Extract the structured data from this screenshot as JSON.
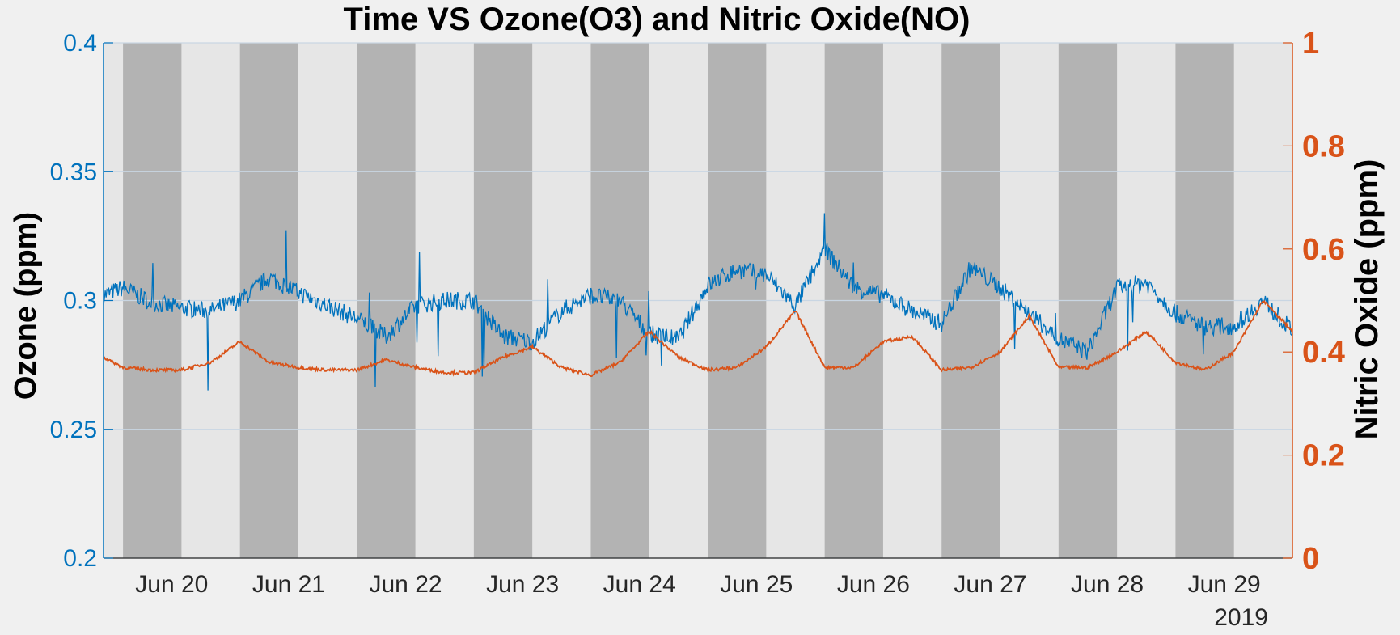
{
  "chart_data": {
    "type": "line",
    "title": "Time VS Ozone(O3) and Nitric Oxide(NO)",
    "year_label": "2019",
    "x_tick_labels": [
      "Jun 20",
      "Jun 21",
      "Jun 22",
      "Jun 23",
      "Jun 24",
      "Jun 25",
      "Jun 26",
      "Jun 27",
      "Jun 28",
      "Jun 29"
    ],
    "xlim": [
      "2019-06-19 10:00",
      "2019-06-29 14:00"
    ],
    "shaded_bands": {
      "description": "alternating dark-gray (night) and light-gray (day) background bands",
      "dark_color": "#b3b3b3",
      "light_color": "#e6e6e6",
      "dark_intervals": [
        [
          "2019-06-19 14:00",
          "2019-06-20 02:00"
        ],
        [
          "2019-06-20 14:00",
          "2019-06-21 02:00"
        ],
        [
          "2019-06-21 14:00",
          "2019-06-22 02:00"
        ],
        [
          "2019-06-22 14:00",
          "2019-06-23 02:00"
        ],
        [
          "2019-06-23 14:00",
          "2019-06-24 02:00"
        ],
        [
          "2019-06-24 14:00",
          "2019-06-25 02:00"
        ],
        [
          "2019-06-25 14:00",
          "2019-06-26 02:00"
        ],
        [
          "2019-06-26 14:00",
          "2019-06-27 02:00"
        ],
        [
          "2019-06-27 14:00",
          "2019-06-28 02:00"
        ],
        [
          "2019-06-28 14:00",
          "2019-06-29 02:00"
        ]
      ]
    },
    "left_axis": {
      "label": "Ozone (ppm)",
      "color": "#0072BD",
      "ylim": [
        0.2,
        0.4
      ],
      "ticks": [
        "0.2",
        "0.25",
        "0.3",
        "0.35",
        "0.4"
      ],
      "grid": true
    },
    "right_axis": {
      "label": "Nitric Oxide (ppm)",
      "color": "#D95319",
      "ylim": [
        0,
        1
      ],
      "ticks": [
        "0",
        "0.2",
        "0.4",
        "0.6",
        "0.8",
        "1"
      ]
    },
    "series": [
      {
        "name": "Ozone",
        "axis": "left",
        "color": "#0072BD",
        "x": [
          "2019-06-19 10:00",
          "2019-06-19 14:00",
          "2019-06-19 20:00",
          "2019-06-20 02:00",
          "2019-06-20 08:00",
          "2019-06-20 14:00",
          "2019-06-20 20:00",
          "2019-06-21 02:00",
          "2019-06-21 08:00",
          "2019-06-21 14:00",
          "2019-06-21 20:00",
          "2019-06-22 02:00",
          "2019-06-22 08:00",
          "2019-06-22 14:00",
          "2019-06-22 20:00",
          "2019-06-23 02:00",
          "2019-06-23 08:00",
          "2019-06-23 14:00",
          "2019-06-23 20:00",
          "2019-06-24 02:00",
          "2019-06-24 08:00",
          "2019-06-24 14:00",
          "2019-06-24 20:00",
          "2019-06-25 02:00",
          "2019-06-25 08:00",
          "2019-06-25 14:00",
          "2019-06-25 20:00",
          "2019-06-26 02:00",
          "2019-06-26 08:00",
          "2019-06-26 14:00",
          "2019-06-26 20:00",
          "2019-06-27 02:00",
          "2019-06-27 08:00",
          "2019-06-27 14:00",
          "2019-06-27 20:00",
          "2019-06-28 02:00",
          "2019-06-28 08:00",
          "2019-06-28 14:00",
          "2019-06-28 20:00",
          "2019-06-29 02:00",
          "2019-06-29 08:00",
          "2019-06-29 14:00"
        ],
        "y": [
          0.302,
          0.305,
          0.299,
          0.297,
          0.296,
          0.3,
          0.309,
          0.303,
          0.298,
          0.293,
          0.286,
          0.298,
          0.3,
          0.3,
          0.286,
          0.284,
          0.296,
          0.302,
          0.3,
          0.287,
          0.285,
          0.306,
          0.312,
          0.31,
          0.298,
          0.32,
          0.305,
          0.302,
          0.296,
          0.291,
          0.313,
          0.305,
          0.295,
          0.285,
          0.28,
          0.305,
          0.307,
          0.295,
          0.29,
          0.29,
          0.3,
          0.288
        ]
      },
      {
        "name": "Nitric Oxide",
        "axis": "right",
        "color": "#D95319",
        "x": [
          "2019-06-19 10:00",
          "2019-06-19 14:00",
          "2019-06-19 20:00",
          "2019-06-20 02:00",
          "2019-06-20 08:00",
          "2019-06-20 14:00",
          "2019-06-20 20:00",
          "2019-06-21 02:00",
          "2019-06-21 08:00",
          "2019-06-21 14:00",
          "2019-06-21 20:00",
          "2019-06-22 02:00",
          "2019-06-22 08:00",
          "2019-06-22 14:00",
          "2019-06-22 20:00",
          "2019-06-23 02:00",
          "2019-06-23 08:00",
          "2019-06-23 14:00",
          "2019-06-23 20:00",
          "2019-06-24 02:00",
          "2019-06-24 08:00",
          "2019-06-24 14:00",
          "2019-06-24 20:00",
          "2019-06-25 02:00",
          "2019-06-25 08:00",
          "2019-06-25 14:00",
          "2019-06-25 20:00",
          "2019-06-26 02:00",
          "2019-06-26 08:00",
          "2019-06-26 14:00",
          "2019-06-26 20:00",
          "2019-06-27 02:00",
          "2019-06-27 08:00",
          "2019-06-27 14:00",
          "2019-06-27 20:00",
          "2019-06-28 02:00",
          "2019-06-28 08:00",
          "2019-06-28 14:00",
          "2019-06-28 20:00",
          "2019-06-29 02:00",
          "2019-06-29 08:00",
          "2019-06-29 14:00"
        ],
        "y": [
          0.39,
          0.37,
          0.365,
          0.365,
          0.38,
          0.42,
          0.38,
          0.37,
          0.365,
          0.365,
          0.385,
          0.37,
          0.36,
          0.36,
          0.39,
          0.41,
          0.37,
          0.355,
          0.38,
          0.44,
          0.39,
          0.365,
          0.37,
          0.41,
          0.48,
          0.37,
          0.37,
          0.42,
          0.43,
          0.365,
          0.37,
          0.4,
          0.47,
          0.37,
          0.37,
          0.4,
          0.44,
          0.38,
          0.365,
          0.4,
          0.5,
          0.44
        ]
      }
    ]
  }
}
